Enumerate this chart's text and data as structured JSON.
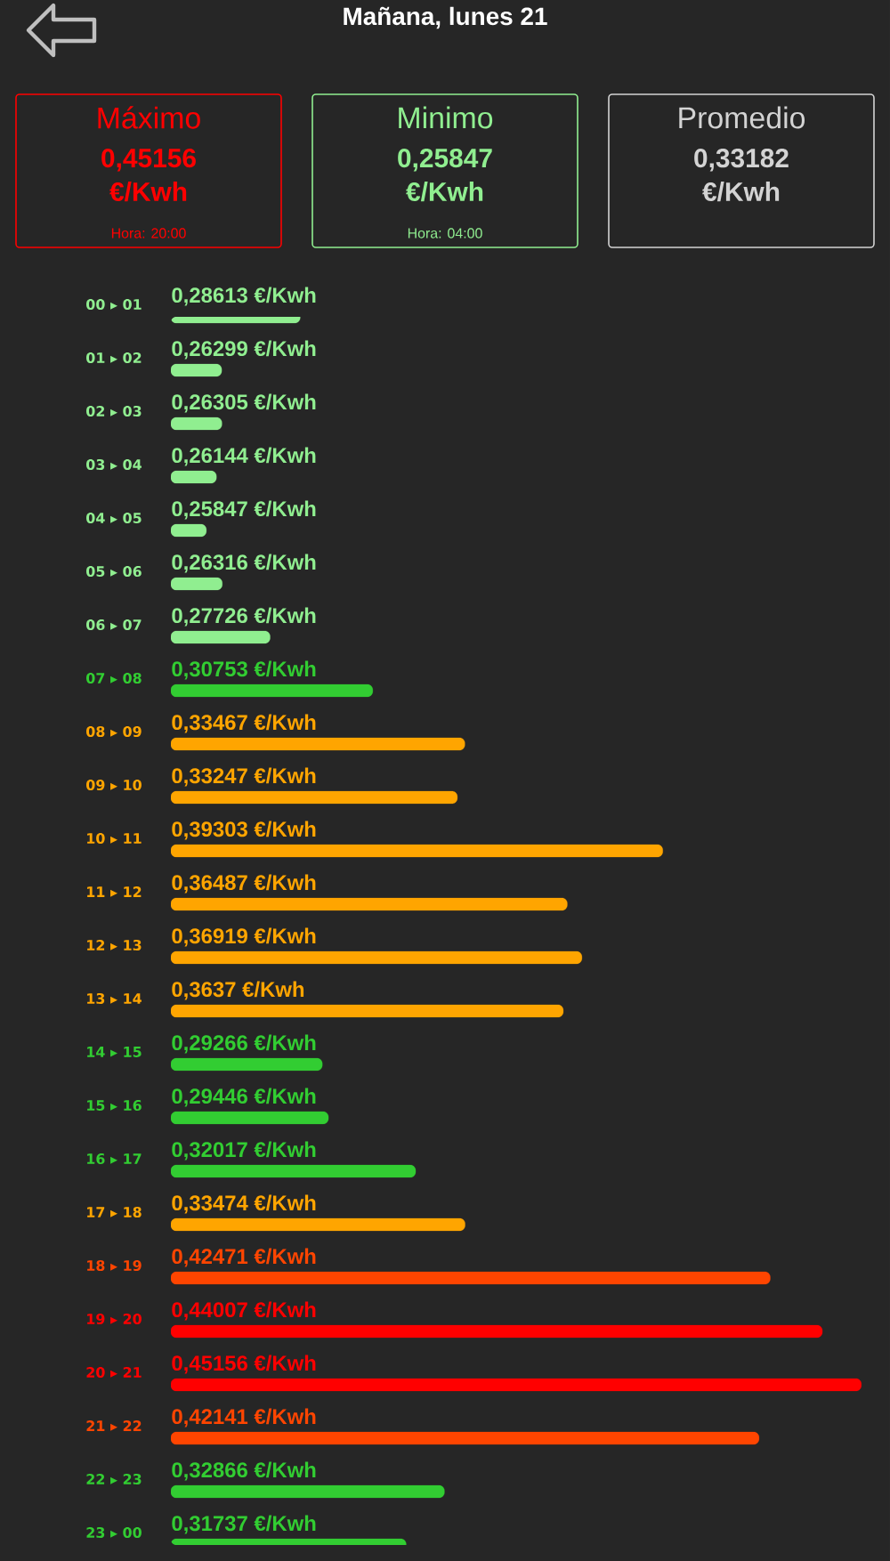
{
  "chart_data": [
    {
      "type": "other",
      "title": "Mañana, lunes 21",
      "categories": [
        "Máximo",
        "Minimo",
        "Promedio"
      ],
      "value_labels": [
        "0,45156 €/Kwh",
        "0,25847 €/Kwh",
        "0,33182 €/Kwh"
      ],
      "colors": [
        "#ff0000",
        "#90ee90",
        "#d3d3d3"
      ],
      "annotations": [
        "Hora: 20:00",
        "Hora: 04:00"
      ]
    },
    {
      "type": "bar",
      "orientation": "horizontal",
      "categories": [
        "00 ▸ 01",
        "01 ▸ 02",
        "02 ▸ 03",
        "03 ▸ 04",
        "04 ▸ 05",
        "05 ▸ 06",
        "06 ▸ 07",
        "07 ▸ 08",
        "08 ▸ 09",
        "09 ▸ 10",
        "10 ▸ 11",
        "11 ▸ 12",
        "12 ▸ 13",
        "13 ▸ 14",
        "14 ▸ 15",
        "15 ▸ 16",
        "16 ▸ 17",
        "17 ▸ 18",
        "18 ▸ 19",
        "19 ▸ 20",
        "20 ▸ 21",
        "21 ▸ 22",
        "22 ▸ 23",
        "23 ▸ 00"
      ],
      "values": [
        0.28613,
        0.26299,
        0.26305,
        0.26144,
        0.25847,
        0.26316,
        0.27726,
        0.30753,
        0.33467,
        0.33247,
        0.39303,
        0.36487,
        0.36919,
        0.3637,
        0.29266,
        0.29446,
        0.32017,
        0.33474,
        0.42471,
        0.44007,
        0.45156,
        0.42141,
        0.32866,
        0.31737
      ],
      "value_labels": [
        "0,28613 €/Kwh",
        "0,26299 €/Kwh",
        "0,26305 €/Kwh",
        "0,26144 €/Kwh",
        "0,25847 €/Kwh",
        "0,26316 €/Kwh",
        "0,27726 €/Kwh",
        "0,30753 €/Kwh",
        "0,33467 €/Kwh",
        "0,33247 €/Kwh",
        "0,39303 €/Kwh",
        "0,36487 €/Kwh",
        "0,36919 €/Kwh",
        "0,3637 €/Kwh",
        "0,29266 €/Kwh",
        "0,29446 €/Kwh",
        "0,32017 €/Kwh",
        "0,33474 €/Kwh",
        "0,42471 €/Kwh",
        "0,44007 €/Kwh",
        "0,45156 €/Kwh",
        "0,42141 €/Kwh",
        "0,32866 €/Kwh",
        "0,31737 €/Kwh"
      ],
      "colors": [
        "#90ee90",
        "#90ee90",
        "#90ee90",
        "#90ee90",
        "#90ee90",
        "#90ee90",
        "#90ee90",
        "#32cd32",
        "#ffa500",
        "#ffa500",
        "#ffa500",
        "#ffa500",
        "#ffa500",
        "#ffa500",
        "#32cd32",
        "#32cd32",
        "#32cd32",
        "#ffa500",
        "#ff4500",
        "#ff0000",
        "#ff0000",
        "#ff4500",
        "#32cd32",
        "#32cd32"
      ],
      "xlim": [
        0.248,
        0.46
      ],
      "tick_labels": "y"
    }
  ]
}
